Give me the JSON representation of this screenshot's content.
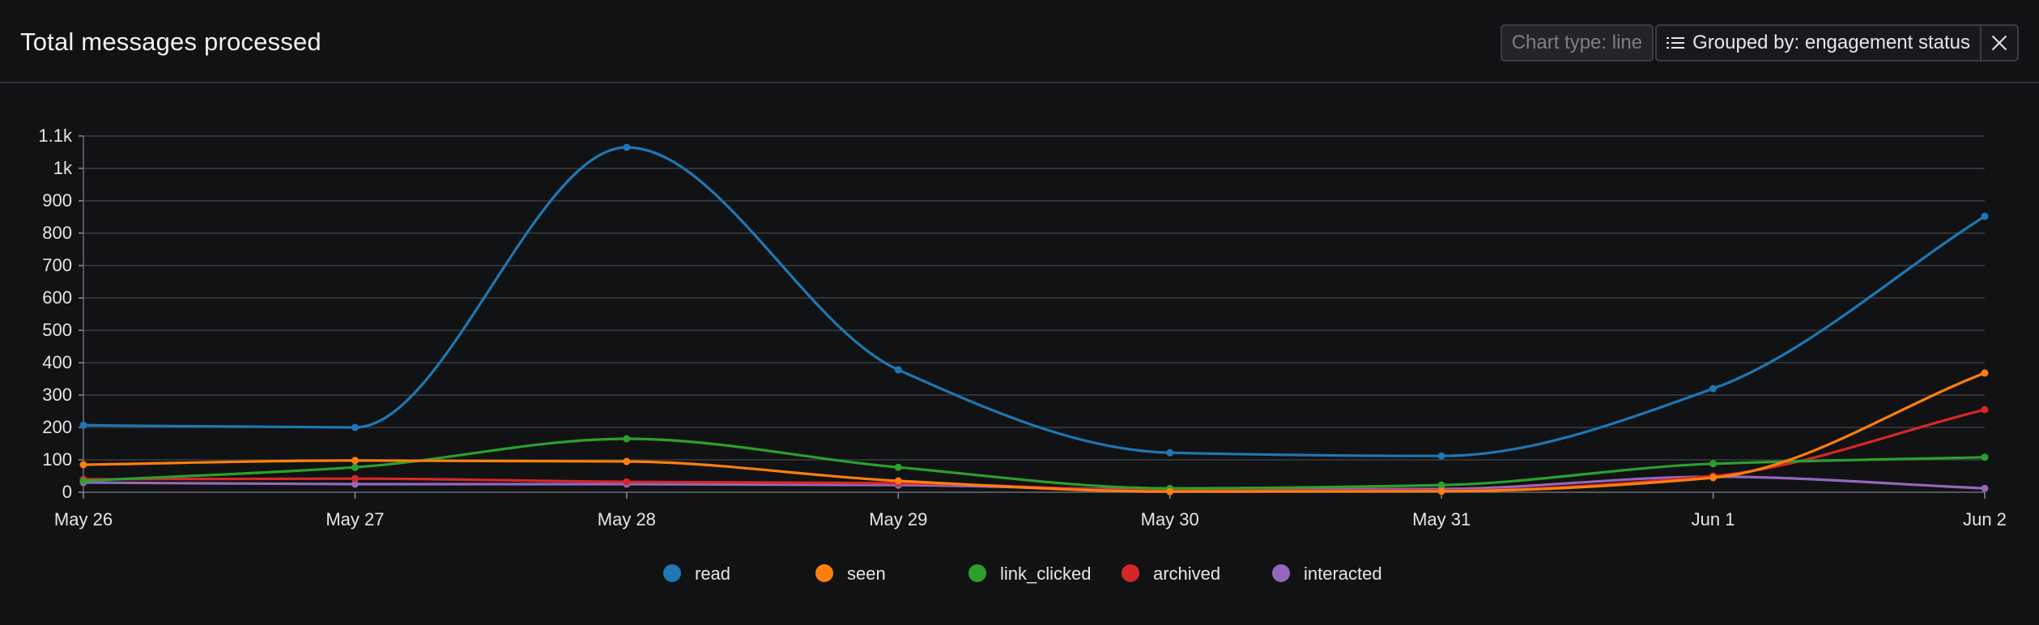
{
  "header": {
    "title": "Total messages processed",
    "chart_type_label": "Chart type: line",
    "grouped_by_label": "Grouped by: engagement status"
  },
  "icons": {
    "group": "list-icon",
    "close": "close-icon"
  },
  "chart_data": {
    "type": "line",
    "title": "Total messages processed",
    "categories": [
      "May 26",
      "May 27",
      "May 28",
      "May 29",
      "May 30",
      "May 31",
      "Jun 1",
      "Jun 2"
    ],
    "ylim": [
      0,
      1100
    ],
    "yticks": [
      0,
      100,
      200,
      300,
      400,
      500,
      600,
      700,
      800,
      900,
      1000,
      1100
    ],
    "ytick_labels": [
      "0",
      "100",
      "200",
      "300",
      "400",
      "500",
      "600",
      "700",
      "800",
      "900",
      "1k",
      "1.1k"
    ],
    "grid": true,
    "legend": "bottom-center",
    "series": [
      {
        "name": "read",
        "color": "#1f77b4",
        "values": [
          207,
          200,
          1065,
          378,
          122,
          112,
          320,
          852
        ]
      },
      {
        "name": "seen",
        "color": "#ff7f0e",
        "values": [
          85,
          98,
          95,
          35,
          2,
          3,
          45,
          368
        ]
      },
      {
        "name": "link_clicked",
        "color": "#2ca02c",
        "values": [
          35,
          77,
          165,
          77,
          12,
          22,
          88,
          108
        ]
      },
      {
        "name": "archived",
        "color": "#d62728",
        "values": [
          40,
          42,
          32,
          28,
          5,
          5,
          50,
          255
        ]
      },
      {
        "name": "interacted",
        "color": "#9467bd",
        "values": [
          30,
          25,
          25,
          22,
          8,
          10,
          48,
          12
        ]
      }
    ]
  }
}
